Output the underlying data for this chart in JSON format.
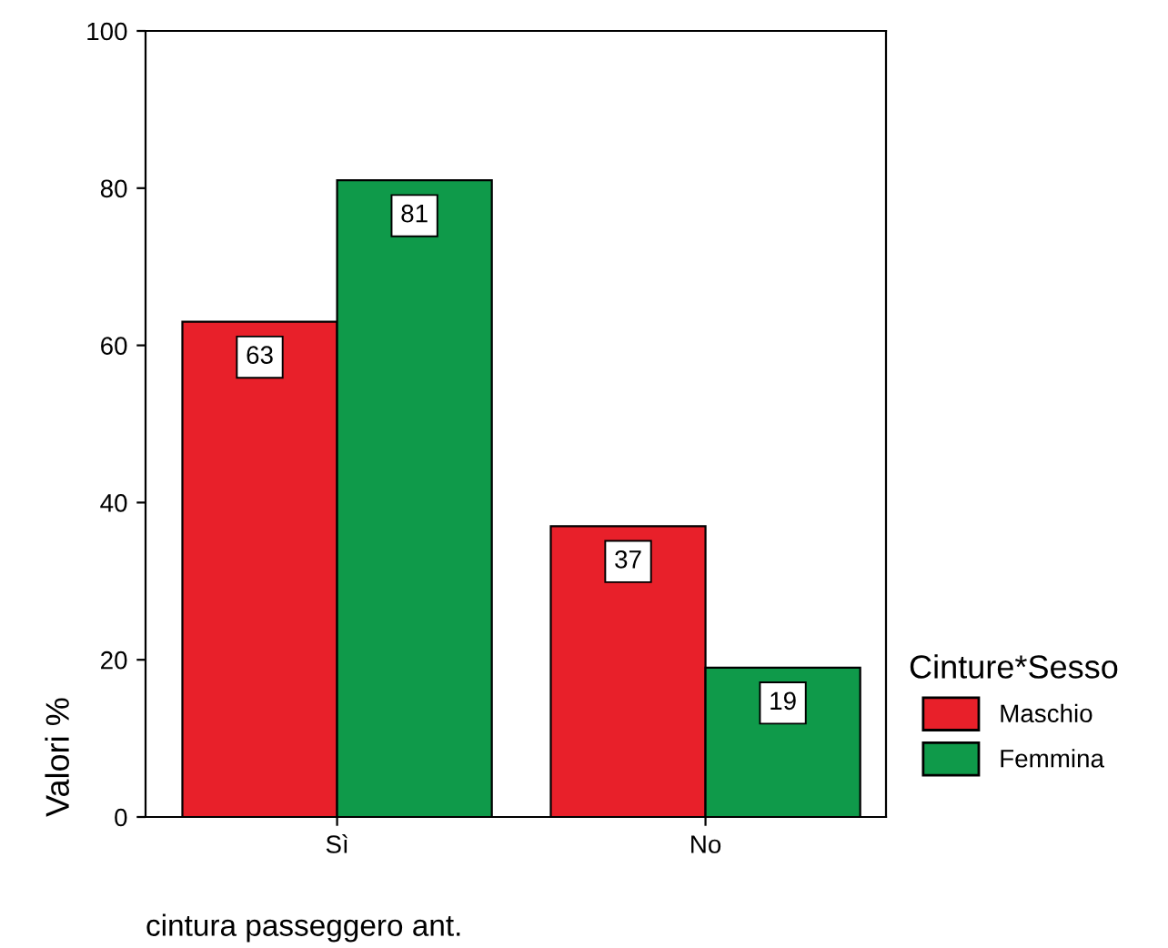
{
  "chart_data": {
    "type": "bar",
    "xlabel": "cintura passeggero ant.",
    "ylabel": "Valori %",
    "legend_title": "Cinture*Sesso",
    "categories": [
      "Sì",
      "No"
    ],
    "series": [
      {
        "name": "Maschio",
        "color": "#e8202a",
        "values": [
          63,
          37
        ]
      },
      {
        "name": "Femmina",
        "color": "#0f9a4a",
        "values": [
          81,
          19
        ]
      }
    ],
    "ylim": [
      0,
      100
    ],
    "yticks": [
      0,
      20,
      40,
      60,
      80,
      100
    ],
    "data_labels": true,
    "legend": "right",
    "grid": false
  }
}
